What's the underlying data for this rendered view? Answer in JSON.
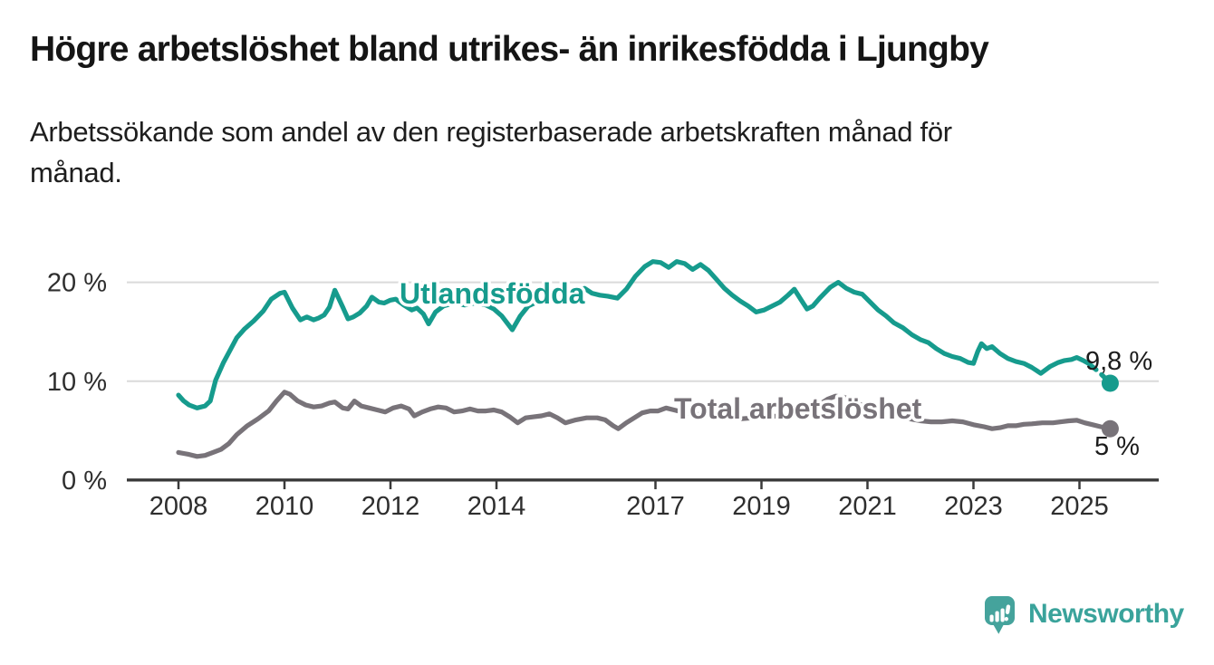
{
  "header": {
    "title": "Högre arbetslöshet bland utrikes- än inrikesfödda i Ljungby",
    "subtitle": "Arbetssökande som andel av den registerbaserade arbetskraften månad för\nmånad."
  },
  "chart_data": {
    "type": "line",
    "unit": "%",
    "x_axis": {
      "ticks": [
        {
          "value": 2008,
          "label": "2008"
        },
        {
          "value": 2010,
          "label": "2010"
        },
        {
          "value": 2012,
          "label": "2012"
        },
        {
          "value": 2014,
          "label": "2014"
        },
        {
          "value": 2017,
          "label": "2017"
        },
        {
          "value": 2019,
          "label": "2019"
        },
        {
          "value": 2021,
          "label": "2021"
        },
        {
          "value": 2023,
          "label": "2023"
        },
        {
          "value": 2025,
          "label": "2025"
        }
      ],
      "range": [
        2007.8,
        2026.0
      ]
    },
    "y_axis": {
      "ticks": [
        {
          "value": 0,
          "label": "0 %"
        },
        {
          "value": 10,
          "label": "10 %"
        },
        {
          "value": 20,
          "label": "20 %"
        }
      ],
      "gridlines": [
        10,
        20
      ],
      "range": [
        0,
        23
      ]
    },
    "series": [
      {
        "name": "Utlandsfödda",
        "color": "#169b8d",
        "end_label": "9,8 %",
        "end_value": 9.8,
        "dashed_from": 2025.17,
        "points": [
          [
            2008.0,
            8.6
          ],
          [
            2008.1,
            8.0
          ],
          [
            2008.2,
            7.6
          ],
          [
            2008.35,
            7.3
          ],
          [
            2008.5,
            7.5
          ],
          [
            2008.6,
            8.0
          ],
          [
            2008.7,
            10.1
          ],
          [
            2008.85,
            11.9
          ],
          [
            2009.0,
            13.4
          ],
          [
            2009.1,
            14.4
          ],
          [
            2009.25,
            15.3
          ],
          [
            2009.42,
            16.1
          ],
          [
            2009.6,
            17.1
          ],
          [
            2009.75,
            18.3
          ],
          [
            2009.92,
            18.9
          ],
          [
            2010.0,
            19.0
          ],
          [
            2010.15,
            17.4
          ],
          [
            2010.3,
            16.2
          ],
          [
            2010.42,
            16.5
          ],
          [
            2010.55,
            16.2
          ],
          [
            2010.65,
            16.4
          ],
          [
            2010.75,
            16.7
          ],
          [
            2010.85,
            17.5
          ],
          [
            2010.95,
            19.2
          ],
          [
            2011.1,
            17.5
          ],
          [
            2011.2,
            16.3
          ],
          [
            2011.3,
            16.5
          ],
          [
            2011.42,
            16.9
          ],
          [
            2011.55,
            17.6
          ],
          [
            2011.65,
            18.5
          ],
          [
            2011.78,
            18.0
          ],
          [
            2011.88,
            17.9
          ],
          [
            2012.0,
            18.2
          ],
          [
            2012.1,
            18.3
          ],
          [
            2012.25,
            17.7
          ],
          [
            2012.4,
            17.2
          ],
          [
            2012.5,
            17.4
          ],
          [
            2012.62,
            16.8
          ],
          [
            2012.72,
            15.8
          ],
          [
            2012.85,
            17.0
          ],
          [
            2013.0,
            17.6
          ],
          [
            2013.2,
            17.9
          ],
          [
            2013.4,
            17.7
          ],
          [
            2013.6,
            17.9
          ],
          [
            2013.8,
            17.7
          ],
          [
            2013.95,
            17.3
          ],
          [
            2014.1,
            16.6
          ],
          [
            2014.3,
            15.2
          ],
          [
            2014.45,
            16.6
          ],
          [
            2014.6,
            17.6
          ],
          [
            2014.8,
            18.1
          ],
          [
            2015.0,
            18.3
          ],
          [
            2015.2,
            18.5
          ],
          [
            2015.45,
            18.8
          ],
          [
            2015.66,
            19.4
          ],
          [
            2015.8,
            18.9
          ],
          [
            2015.95,
            18.7
          ],
          [
            2016.1,
            18.6
          ],
          [
            2016.28,
            18.4
          ],
          [
            2016.45,
            19.3
          ],
          [
            2016.62,
            20.6
          ],
          [
            2016.8,
            21.6
          ],
          [
            2016.95,
            22.1
          ],
          [
            2017.1,
            22.0
          ],
          [
            2017.25,
            21.5
          ],
          [
            2017.4,
            22.1
          ],
          [
            2017.55,
            21.9
          ],
          [
            2017.7,
            21.3
          ],
          [
            2017.85,
            21.8
          ],
          [
            2018.0,
            21.2
          ],
          [
            2018.15,
            20.3
          ],
          [
            2018.3,
            19.4
          ],
          [
            2018.45,
            18.7
          ],
          [
            2018.6,
            18.1
          ],
          [
            2018.75,
            17.6
          ],
          [
            2018.9,
            17.0
          ],
          [
            2019.05,
            17.2
          ],
          [
            2019.2,
            17.6
          ],
          [
            2019.35,
            18.0
          ],
          [
            2019.5,
            18.7
          ],
          [
            2019.62,
            19.3
          ],
          [
            2019.75,
            18.2
          ],
          [
            2019.86,
            17.3
          ],
          [
            2019.97,
            17.6
          ],
          [
            2020.1,
            18.4
          ],
          [
            2020.3,
            19.5
          ],
          [
            2020.45,
            20.0
          ],
          [
            2020.6,
            19.4
          ],
          [
            2020.75,
            19.0
          ],
          [
            2020.9,
            18.8
          ],
          [
            2021.05,
            18.0
          ],
          [
            2021.2,
            17.2
          ],
          [
            2021.35,
            16.6
          ],
          [
            2021.5,
            15.9
          ],
          [
            2021.67,
            15.4
          ],
          [
            2021.84,
            14.7
          ],
          [
            2022.0,
            14.2
          ],
          [
            2022.15,
            13.9
          ],
          [
            2022.3,
            13.3
          ],
          [
            2022.45,
            12.8
          ],
          [
            2022.6,
            12.5
          ],
          [
            2022.75,
            12.3
          ],
          [
            2022.9,
            11.9
          ],
          [
            2023.0,
            11.8
          ],
          [
            2023.08,
            13.0
          ],
          [
            2023.15,
            13.8
          ],
          [
            2023.25,
            13.3
          ],
          [
            2023.35,
            13.5
          ],
          [
            2023.5,
            12.8
          ],
          [
            2023.65,
            12.3
          ],
          [
            2023.8,
            12.0
          ],
          [
            2023.95,
            11.8
          ],
          [
            2024.1,
            11.4
          ],
          [
            2024.27,
            10.8
          ],
          [
            2024.45,
            11.5
          ],
          [
            2024.6,
            11.9
          ],
          [
            2024.72,
            12.1
          ],
          [
            2024.85,
            12.2
          ],
          [
            2024.95,
            12.4
          ],
          [
            2025.07,
            12.1
          ],
          [
            2025.17,
            11.8
          ],
          [
            2025.33,
            11.1
          ],
          [
            2025.45,
            10.5
          ],
          [
            2025.58,
            9.8
          ]
        ]
      },
      {
        "name": "Total arbetslöshet",
        "color": "#787379",
        "end_label": "5 %",
        "end_value": 5.2,
        "dashed_from": null,
        "points": [
          [
            2008.0,
            2.8
          ],
          [
            2008.1,
            2.7
          ],
          [
            2008.2,
            2.6
          ],
          [
            2008.35,
            2.4
          ],
          [
            2008.5,
            2.5
          ],
          [
            2008.65,
            2.8
          ],
          [
            2008.8,
            3.1
          ],
          [
            2008.95,
            3.7
          ],
          [
            2009.1,
            4.6
          ],
          [
            2009.3,
            5.5
          ],
          [
            2009.5,
            6.2
          ],
          [
            2009.7,
            7.0
          ],
          [
            2009.85,
            8.0
          ],
          [
            2010.0,
            8.9
          ],
          [
            2010.1,
            8.7
          ],
          [
            2010.25,
            8.0
          ],
          [
            2010.4,
            7.6
          ],
          [
            2010.55,
            7.4
          ],
          [
            2010.7,
            7.5
          ],
          [
            2010.85,
            7.8
          ],
          [
            2010.95,
            7.9
          ],
          [
            2011.1,
            7.3
          ],
          [
            2011.2,
            7.2
          ],
          [
            2011.32,
            8.0
          ],
          [
            2011.45,
            7.5
          ],
          [
            2011.6,
            7.3
          ],
          [
            2011.75,
            7.1
          ],
          [
            2011.9,
            6.9
          ],
          [
            2012.05,
            7.3
          ],
          [
            2012.2,
            7.5
          ],
          [
            2012.35,
            7.2
          ],
          [
            2012.45,
            6.5
          ],
          [
            2012.6,
            6.9
          ],
          [
            2012.75,
            7.2
          ],
          [
            2012.9,
            7.4
          ],
          [
            2013.05,
            7.3
          ],
          [
            2013.2,
            6.9
          ],
          [
            2013.35,
            7.0
          ],
          [
            2013.5,
            7.2
          ],
          [
            2013.65,
            7.0
          ],
          [
            2013.8,
            7.0
          ],
          [
            2013.95,
            7.1
          ],
          [
            2014.1,
            6.9
          ],
          [
            2014.25,
            6.4
          ],
          [
            2014.4,
            5.8
          ],
          [
            2014.55,
            6.3
          ],
          [
            2014.7,
            6.4
          ],
          [
            2014.85,
            6.5
          ],
          [
            2015.0,
            6.7
          ],
          [
            2015.15,
            6.3
          ],
          [
            2015.3,
            5.8
          ],
          [
            2015.5,
            6.1
          ],
          [
            2015.7,
            6.3
          ],
          [
            2015.9,
            6.3
          ],
          [
            2016.05,
            6.1
          ],
          [
            2016.2,
            5.5
          ],
          [
            2016.3,
            5.2
          ],
          [
            2016.45,
            5.8
          ],
          [
            2016.6,
            6.3
          ],
          [
            2016.75,
            6.8
          ],
          [
            2016.9,
            7.0
          ],
          [
            2017.05,
            7.0
          ],
          [
            2017.2,
            7.3
          ],
          [
            2017.35,
            7.1
          ],
          [
            2017.5,
            6.9
          ],
          [
            2017.7,
            6.7
          ],
          [
            2017.9,
            6.6
          ],
          [
            2018.1,
            6.4
          ],
          [
            2018.35,
            6.3
          ],
          [
            2018.6,
            6.2
          ],
          [
            2018.85,
            6.3
          ],
          [
            2019.1,
            6.4
          ],
          [
            2019.35,
            6.5
          ],
          [
            2019.6,
            6.6
          ],
          [
            2019.85,
            6.9
          ],
          [
            2020.05,
            7.5
          ],
          [
            2020.25,
            8.2
          ],
          [
            2020.4,
            8.5
          ],
          [
            2020.55,
            8.4
          ],
          [
            2020.7,
            8.1
          ],
          [
            2020.85,
            7.7
          ],
          [
            2021.0,
            7.3
          ],
          [
            2021.2,
            6.9
          ],
          [
            2021.4,
            6.6
          ],
          [
            2021.6,
            6.4
          ],
          [
            2021.8,
            6.2
          ],
          [
            2022.0,
            6.0
          ],
          [
            2022.2,
            5.9
          ],
          [
            2022.4,
            5.9
          ],
          [
            2022.6,
            6.0
          ],
          [
            2022.8,
            5.9
          ],
          [
            2023.0,
            5.6
          ],
          [
            2023.2,
            5.4
          ],
          [
            2023.35,
            5.2
          ],
          [
            2023.5,
            5.3
          ],
          [
            2023.65,
            5.5
          ],
          [
            2023.8,
            5.5
          ],
          [
            2023.95,
            5.65
          ],
          [
            2024.1,
            5.7
          ],
          [
            2024.3,
            5.8
          ],
          [
            2024.5,
            5.8
          ],
          [
            2024.65,
            5.9
          ],
          [
            2024.8,
            6.0
          ],
          [
            2024.95,
            6.05
          ],
          [
            2025.1,
            5.8
          ],
          [
            2025.25,
            5.6
          ],
          [
            2025.4,
            5.4
          ],
          [
            2025.58,
            5.2
          ]
        ]
      }
    ]
  },
  "footer": {
    "brand": "Newsworthy"
  }
}
